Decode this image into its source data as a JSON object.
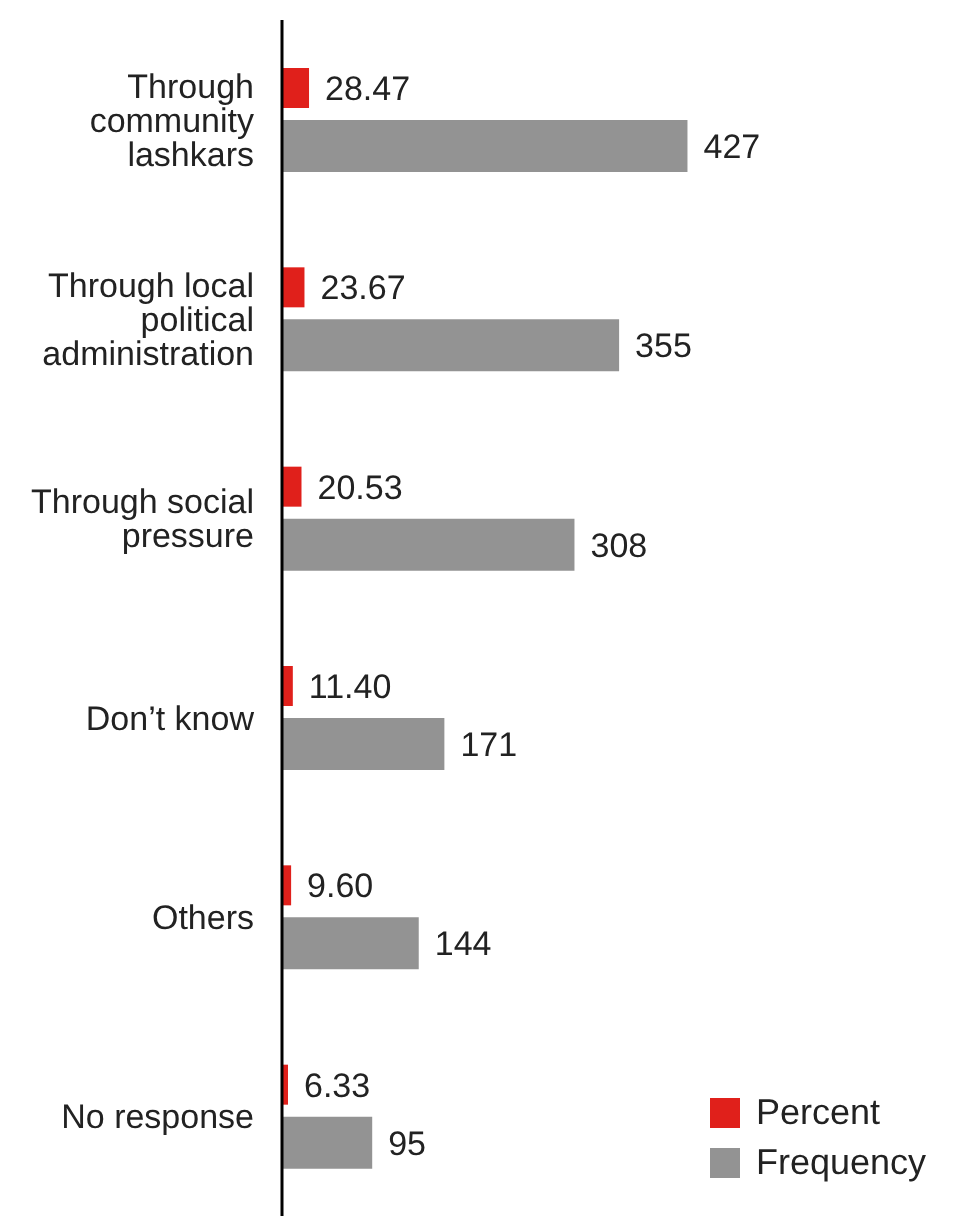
{
  "chart_data": {
    "type": "bar",
    "orientation": "horizontal",
    "categories": [
      "Through community lashkars",
      "Through local political administration",
      "Through social pressure",
      "Don’t know",
      "Others",
      "No response"
    ],
    "series": [
      {
        "name": "Percent",
        "color": "#e0201b",
        "values": [
          28.47,
          23.67,
          20.53,
          11.4,
          9.6,
          6.33
        ],
        "value_labels": [
          "28.47",
          "23.67",
          "20.53",
          "11.40",
          "9.60",
          "6.33"
        ]
      },
      {
        "name": "Frequency",
        "color": "#939393",
        "values": [
          427,
          355,
          308,
          171,
          144,
          95
        ]
      }
    ],
    "data_labels": true,
    "tick_labels": "y",
    "legend": "bottom right"
  }
}
